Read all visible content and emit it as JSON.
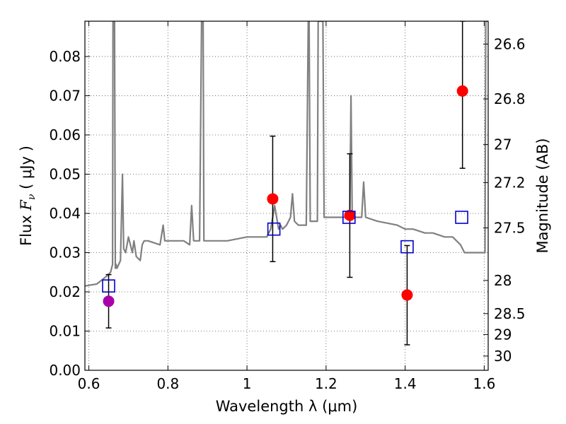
{
  "chart_data": {
    "type": "scatter",
    "xlabel": "Wavelength  λ (μm)",
    "ylabel": "Flux  F_ν  ( μJy )",
    "ylabel_parts": {
      "prefix": "Flux  ",
      "sym": "F",
      "sub": "ν",
      "unit": "  ( μJy )"
    },
    "y2label": "Magnitude (AB)",
    "xlim": [
      0.59,
      1.61
    ],
    "ylim": [
      0.0,
      0.089
    ],
    "grid": true,
    "x_ticks": [
      {
        "value": 0.6,
        "label": "0.6"
      },
      {
        "value": 0.8,
        "label": "0.8"
      },
      {
        "value": 1.0,
        "label": "1"
      },
      {
        "value": 1.2,
        "label": "1.2"
      },
      {
        "value": 1.4,
        "label": "1.4"
      },
      {
        "value": 1.6,
        "label": "1.6"
      }
    ],
    "y_ticks": [
      {
        "value": 0.0,
        "label": "0.00"
      },
      {
        "value": 0.01,
        "label": "0.01"
      },
      {
        "value": 0.02,
        "label": "0.02"
      },
      {
        "value": 0.03,
        "label": "0.03"
      },
      {
        "value": 0.04,
        "label": "0.04"
      },
      {
        "value": 0.05,
        "label": "0.05"
      },
      {
        "value": 0.06,
        "label": "0.06"
      },
      {
        "value": 0.07,
        "label": "0.07"
      },
      {
        "value": 0.08,
        "label": "0.08"
      }
    ],
    "y2_ticks": [
      {
        "mag": 26.6,
        "label": "26.6"
      },
      {
        "mag": 26.8,
        "label": "26.8"
      },
      {
        "mag": 27.0,
        "label": "27"
      },
      {
        "mag": 27.2,
        "label": "27.2"
      },
      {
        "mag": 27.5,
        "label": "27.5"
      },
      {
        "mag": 28.0,
        "label": "28"
      },
      {
        "mag": 28.5,
        "label": "28.5"
      },
      {
        "mag": 29.0,
        "label": "29"
      },
      {
        "mag": 30.0,
        "label": "30"
      }
    ],
    "series": [
      {
        "kind": "line",
        "color": "#808080",
        "x": [
          0.59,
          0.62,
          0.645,
          0.655,
          0.66,
          0.661,
          0.663,
          0.665,
          0.667,
          0.669,
          0.671,
          0.68,
          0.685,
          0.688,
          0.693,
          0.7,
          0.71,
          0.714,
          0.72,
          0.73,
          0.735,
          0.74,
          0.75,
          0.78,
          0.788,
          0.792,
          0.8,
          0.84,
          0.855,
          0.86,
          0.865,
          0.88,
          0.885,
          0.887,
          0.889,
          0.891,
          0.893,
          0.9,
          0.95,
          1.0,
          1.03,
          1.04,
          1.05,
          1.06,
          1.07,
          1.08,
          1.085,
          1.09,
          1.1,
          1.11,
          1.115,
          1.12,
          1.13,
          1.15,
          1.155,
          1.157,
          1.16,
          1.165,
          1.17,
          1.175,
          1.178,
          1.18,
          1.185,
          1.188,
          1.19,
          1.192,
          1.195,
          1.2,
          1.22,
          1.24,
          1.255,
          1.26,
          1.263,
          1.266,
          1.27,
          1.28,
          1.29,
          1.295,
          1.3,
          1.33,
          1.38,
          1.4,
          1.42,
          1.45,
          1.47,
          1.5,
          1.52,
          1.53,
          1.54,
          1.545,
          1.55,
          1.6,
          1.602,
          1.604,
          1.608,
          1.61
        ],
        "y": [
          0.0215,
          0.022,
          0.024,
          0.025,
          0.027,
          0.089,
          0.089,
          0.089,
          0.026,
          0.027,
          0.026,
          0.028,
          0.05,
          0.031,
          0.03,
          0.034,
          0.03,
          0.033,
          0.029,
          0.028,
          0.032,
          0.033,
          0.033,
          0.032,
          0.037,
          0.033,
          0.033,
          0.033,
          0.032,
          0.042,
          0.033,
          0.033,
          0.089,
          0.089,
          0.089,
          0.033,
          0.033,
          0.033,
          0.033,
          0.034,
          0.034,
          0.034,
          0.034,
          0.036,
          0.042,
          0.036,
          0.037,
          0.036,
          0.037,
          0.039,
          0.045,
          0.038,
          0.037,
          0.037,
          0.089,
          0.089,
          0.038,
          0.038,
          0.038,
          0.038,
          0.038,
          0.089,
          0.089,
          0.089,
          0.089,
          0.089,
          0.039,
          0.039,
          0.039,
          0.039,
          0.039,
          0.04,
          0.07,
          0.04,
          0.039,
          0.039,
          0.039,
          0.048,
          0.039,
          0.038,
          0.037,
          0.036,
          0.036,
          0.035,
          0.035,
          0.034,
          0.034,
          0.033,
          0.032,
          0.031,
          0.03,
          0.03,
          0.03,
          0.089,
          0.089,
          0.089
        ]
      },
      {
        "kind": "points",
        "name": "red",
        "color": "#ff0000",
        "x": [
          1.065,
          1.26,
          1.405,
          1.545
        ],
        "y": [
          0.0437,
          0.0395,
          0.0192,
          0.0712
        ],
        "yerr_low": [
          0.0277,
          0.0237,
          0.0065,
          0.0515
        ],
        "yerr_high": [
          0.0597,
          0.0552,
          0.0318,
          0.089
        ]
      },
      {
        "kind": "points",
        "name": "magenta",
        "color": "#aa00aa",
        "x": [
          0.65
        ],
        "y": [
          0.0176
        ],
        "yerr_low": [
          0.0108
        ],
        "yerr_high": [
          0.0244
        ]
      },
      {
        "kind": "squares",
        "name": "blue",
        "color": "#0000cc",
        "x": [
          0.65,
          1.068,
          1.258,
          1.405,
          1.543
        ],
        "y": [
          0.0215,
          0.036,
          0.039,
          0.0315,
          0.039
        ]
      }
    ]
  }
}
